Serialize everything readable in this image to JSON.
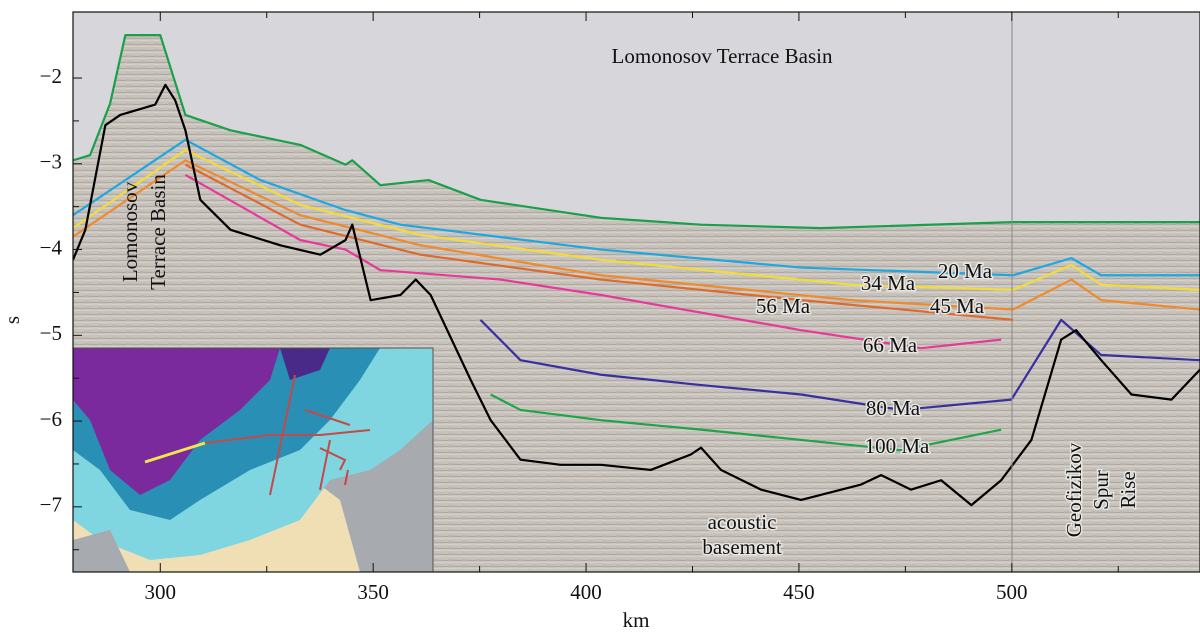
{
  "chart_data": {
    "type": "line",
    "xlabel": "km",
    "ylabel": "s",
    "xlim": [
      279.5,
      544.2
    ],
    "ylim": [
      -7.76,
      -1.23
    ],
    "xticks": [
      300,
      350,
      400,
      450,
      500
    ],
    "xminorticks": [
      325,
      375,
      425,
      475,
      525
    ],
    "yticks": [
      {
        "value": -7,
        "label": "−7"
      },
      {
        "value": -6,
        "label": "−6"
      },
      {
        "value": -5,
        "label": "−5"
      },
      {
        "value": -4,
        "label": "−4"
      },
      {
        "value": -3,
        "label": "−3"
      },
      {
        "value": -2,
        "label": "−2"
      }
    ],
    "yminorticks": [
      -7.5,
      -6.5,
      -5.5,
      -4.5,
      -3.5,
      -2.5
    ],
    "annotations": [
      "Lomonosov Terrace Basin",
      "Lomonosov",
      "Terrace Basin",
      "acoustic",
      "basement",
      "Geofizikov",
      "Spur",
      "Rise"
    ],
    "series": [
      {
        "color": "#1aa04a",
        "x": [
          279.5,
          283.5,
          288.2,
          291.8,
          300,
          305.9,
          316.5,
          332.9,
          343.5,
          345.1,
          351.7,
          363,
          375.2,
          403.5,
          427,
          455.2,
          500.3,
          544.2
        ],
        "values": [
          -2.96,
          -2.9,
          -2.3,
          -1.5,
          -1.5,
          -2.43,
          -2.61,
          -2.78,
          -3.01,
          -2.96,
          -3.25,
          -3.19,
          -3.42,
          -3.63,
          -3.71,
          -3.75,
          -3.68,
          -3.68
        ]
      },
      {
        "name": "20 Ma",
        "color": "#1ea7e1",
        "x": [
          279.5,
          305.9,
          323.5,
          343.5,
          356.4,
          403.5,
          450.5,
          500.3,
          514,
          521,
          544.2
        ],
        "values": [
          -3.6,
          -2.72,
          -3.19,
          -3.54,
          -3.71,
          -4.0,
          -4.21,
          -4.3,
          -4.1,
          -4.3,
          -4.3
        ]
      },
      {
        "name": "34 Ma",
        "color": "#f2dc3a",
        "x": [
          279.5,
          305.9,
          332.9,
          361.1,
          403.5,
          462.2,
          500.3,
          514,
          521,
          544.2
        ],
        "values": [
          -3.75,
          -2.84,
          -3.48,
          -3.83,
          -4.12,
          -4.41,
          -4.47,
          -4.18,
          -4.41,
          -4.47
        ]
      },
      {
        "name": "45 Ma",
        "color": "#f08a2a",
        "x": [
          279.5,
          305.9,
          332.9,
          361.1,
          403.5,
          462.2,
          500.3,
          514,
          521,
          544.2
        ],
        "values": [
          -3.85,
          -2.96,
          -3.6,
          -3.95,
          -4.3,
          -4.59,
          -4.7,
          -4.35,
          -4.59,
          -4.7
        ]
      },
      {
        "name": "56 Ma",
        "color": "#e06a2a",
        "x": [
          305.9,
          332.9,
          361.1,
          403.5,
          450.5,
          500.3
        ],
        "values": [
          -3.01,
          -3.71,
          -4.06,
          -4.35,
          -4.59,
          -4.82
        ]
      },
      {
        "name": "66 Ma",
        "color": "#e8399a",
        "x": [
          305.9,
          332.9,
          343.5,
          351.7,
          379.9,
          403.5,
          450.5,
          478.7,
          497.5
        ],
        "values": [
          -3.13,
          -3.89,
          -4.0,
          -4.24,
          -4.35,
          -4.53,
          -4.94,
          -5.15,
          -5.05
        ]
      },
      {
        "name": "80 Ma",
        "color": "#3a2fa0",
        "x": [
          375.2,
          384.6,
          403.5,
          427,
          450.5,
          474,
          499.9,
          511.6,
          521,
          544.2
        ],
        "values": [
          -4.82,
          -5.29,
          -5.46,
          -5.58,
          -5.69,
          -5.87,
          -5.75,
          -4.82,
          -5.23,
          -5.29
        ]
      },
      {
        "name": "100 Ma",
        "color": "#1ea54a",
        "x": [
          377.6,
          384.6,
          403.5,
          427,
          450.5,
          474,
          497.5
        ],
        "values": [
          -5.69,
          -5.87,
          -5.99,
          -6.1,
          -6.22,
          -6.34,
          -6.1
        ]
      },
      {
        "color": "#000000",
        "x": [
          279.5,
          282.4,
          287.1,
          290.6,
          298.8,
          301.2,
          303.5,
          305.9,
          309.4,
          316.5,
          328.2,
          337.6,
          343.5,
          345.1,
          349.4,
          356.4,
          360,
          363.5,
          372.9,
          377.6,
          384.6,
          394,
          403.5,
          415.2,
          424.6,
          427,
          431.7,
          441.1,
          450.5,
          464.6,
          469.3,
          476.3,
          483.4,
          490.5,
          497.5,
          504.6,
          511.6,
          515.1,
          521,
          528.1,
          537.5,
          544.2
        ],
        "values": [
          -4.12,
          -3.77,
          -2.55,
          -2.43,
          -2.31,
          -2.08,
          -2.26,
          -2.61,
          -3.42,
          -3.77,
          -3.95,
          -4.06,
          -3.89,
          -3.71,
          -4.59,
          -4.53,
          -4.35,
          -4.53,
          -5.52,
          -5.99,
          -6.45,
          -6.51,
          -6.51,
          -6.57,
          -6.39,
          -6.31,
          -6.57,
          -6.8,
          -6.92,
          -6.74,
          -6.63,
          -6.8,
          -6.69,
          -6.98,
          -6.69,
          -6.22,
          -5.05,
          -4.94,
          -5.29,
          -5.69,
          -5.75,
          -5.4
        ]
      }
    ]
  }
}
